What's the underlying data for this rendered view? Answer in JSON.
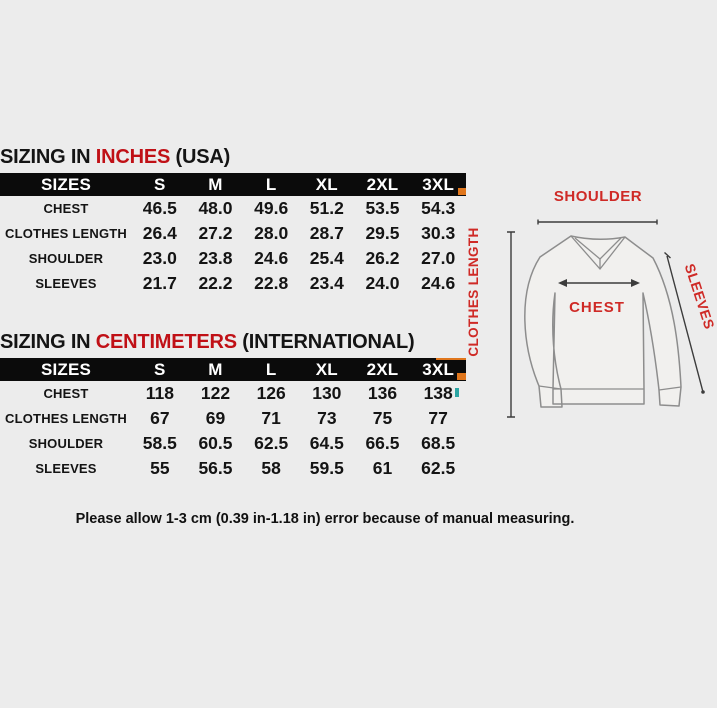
{
  "colors": {
    "background": "#ececec",
    "accent_red": "#c01016",
    "diagram_red": "#cf2a26",
    "table_header_bg": "#0b0b0b",
    "table_header_text": "#ffffff"
  },
  "sections": {
    "inches": {
      "heading": {
        "prefix": "SIZING IN ",
        "highlight": "INCHES",
        "suffix": " (USA)"
      },
      "table": {
        "header": [
          "SIZES",
          "S",
          "M",
          "L",
          "XL",
          "2XL",
          "3XL"
        ],
        "rows": [
          {
            "label": "CHEST",
            "values": [
              "46.5",
              "48.0",
              "49.6",
              "51.2",
              "53.5",
              "54.3"
            ]
          },
          {
            "label": "CLOTHES LENGTH",
            "values": [
              "26.4",
              "27.2",
              "28.0",
              "28.7",
              "29.5",
              "30.3"
            ]
          },
          {
            "label": "SHOULDER",
            "values": [
              "23.0",
              "23.8",
              "24.6",
              "25.4",
              "26.2",
              "27.0"
            ]
          },
          {
            "label": "SLEEVES",
            "values": [
              "21.7",
              "22.2",
              "22.8",
              "23.4",
              "24.0",
              "24.6"
            ]
          }
        ]
      }
    },
    "centimeters": {
      "heading": {
        "prefix": "SIZING IN ",
        "highlight": "CENTIMETERS",
        "suffix": " (INTERNATIONAL)"
      },
      "table": {
        "header": [
          "SIZES",
          "S",
          "M",
          "L",
          "XL",
          "2XL",
          "3XL"
        ],
        "rows": [
          {
            "label": "CHEST",
            "values": [
              "118",
              "122",
              "126",
              "130",
              "136",
              "138"
            ]
          },
          {
            "label": "CLOTHES LENGTH",
            "values": [
              "67",
              "69",
              "71",
              "73",
              "75",
              "77"
            ]
          },
          {
            "label": "SHOULDER",
            "values": [
              "58.5",
              "60.5",
              "62.5",
              "64.5",
              "66.5",
              "68.5"
            ]
          },
          {
            "label": "SLEEVES",
            "values": [
              "55",
              "56.5",
              "58",
              "59.5",
              "61",
              "62.5"
            ]
          }
        ]
      }
    }
  },
  "note": "Please allow 1-3 cm (0.39 in-1.18 in) error because of manual measuring.",
  "diagram": {
    "labels": {
      "shoulder": "SHOULDER",
      "chest": "CHEST",
      "clothes_length": "CLOTHES LENGTH",
      "sleeves": "SLEEVES"
    }
  }
}
